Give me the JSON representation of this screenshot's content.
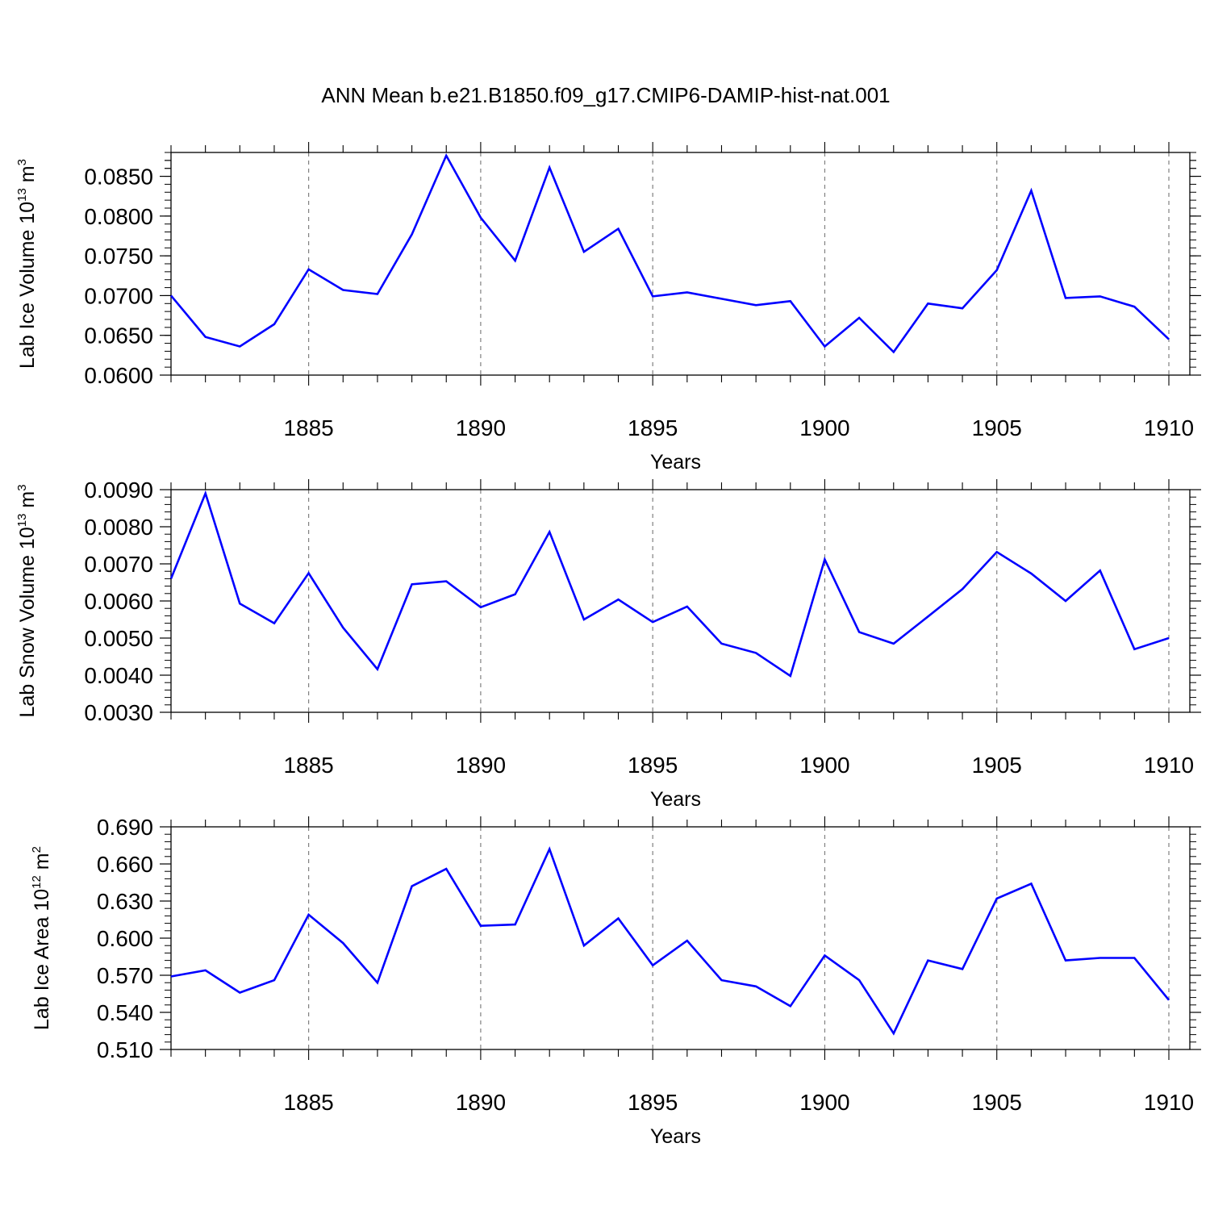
{
  "title": "ANN Mean b.e21.B1850.f09_g17.CMIP6-DAMIP-hist-nat.001",
  "colors": {
    "line": "#0000ff",
    "axes": "#000000",
    "grid": "#808080"
  },
  "chart_data": [
    {
      "type": "line",
      "ylabel": {
        "text": "Lab Ice Volume 10",
        "exp": "13",
        "unit": " m",
        "unit_exp": "3"
      },
      "xlabel": "Years",
      "xlim": [
        1881,
        1910
      ],
      "ylim": [
        0.06,
        0.088
      ],
      "yticks": [
        "0.0600",
        "0.0650",
        "0.0700",
        "0.0750",
        "0.0800",
        "0.0850"
      ],
      "xticks": [
        "1885",
        "1890",
        "1895",
        "1900",
        "1905",
        "1910"
      ],
      "grid": "vertical dashed at major x ticks",
      "series": [
        {
          "x": [
            1881,
            1882,
            1883,
            1884,
            1885,
            1886,
            1887,
            1888,
            1889,
            1890,
            1891,
            1892,
            1893,
            1894,
            1895,
            1896,
            1897,
            1898,
            1899,
            1900,
            1901,
            1902,
            1903,
            1904,
            1905,
            1906,
            1907,
            1908,
            1909,
            1910
          ],
          "values": [
            0.07,
            0.0648,
            0.0636,
            0.0664,
            0.0733,
            0.0707,
            0.0702,
            0.0777,
            0.0876,
            0.0798,
            0.0744,
            0.0861,
            0.0755,
            0.0784,
            0.0699,
            0.0704,
            0.0696,
            0.0688,
            0.0693,
            0.0636,
            0.0672,
            0.0629,
            0.069,
            0.0684,
            0.0732,
            0.0832,
            0.0697,
            0.0699,
            0.0686,
            0.0645
          ]
        }
      ]
    },
    {
      "type": "line",
      "ylabel": {
        "text": "Lab Snow Volume 10",
        "exp": "13",
        "unit": " m",
        "unit_exp": "3"
      },
      "xlabel": "Years",
      "xlim": [
        1881,
        1910
      ],
      "ylim": [
        0.003,
        0.009
      ],
      "yticks": [
        "0.0030",
        "0.0040",
        "0.0050",
        "0.0060",
        "0.0070",
        "0.0080",
        "0.0090"
      ],
      "xticks": [
        "1885",
        "1890",
        "1895",
        "1900",
        "1905",
        "1910"
      ],
      "grid": "vertical dashed at major x ticks",
      "series": [
        {
          "x": [
            1881,
            1882,
            1883,
            1884,
            1885,
            1886,
            1887,
            1888,
            1889,
            1890,
            1891,
            1892,
            1893,
            1894,
            1895,
            1896,
            1897,
            1898,
            1899,
            1900,
            1901,
            1902,
            1903,
            1904,
            1905,
            1906,
            1907,
            1908,
            1909,
            1910
          ],
          "values": [
            0.0066,
            0.0089,
            0.00593,
            0.0054,
            0.00675,
            0.00528,
            0.00416,
            0.00645,
            0.00653,
            0.00583,
            0.00618,
            0.00786,
            0.0055,
            0.00604,
            0.00543,
            0.00585,
            0.00485,
            0.0046,
            0.00398,
            0.00712,
            0.00516,
            0.00485,
            0.00558,
            0.00632,
            0.00732,
            0.00674,
            0.006,
            0.00682,
            0.0047,
            0.005
          ]
        }
      ]
    },
    {
      "type": "line",
      "ylabel": {
        "text": "Lab Ice Area 10",
        "exp": "12",
        "unit": " m",
        "unit_exp": "2"
      },
      "xlabel": "Years",
      "xlim": [
        1881,
        1910
      ],
      "ylim": [
        0.51,
        0.69
      ],
      "yticks": [
        "0.510",
        "0.540",
        "0.570",
        "0.600",
        "0.630",
        "0.660",
        "0.690"
      ],
      "xticks": [
        "1885",
        "1890",
        "1895",
        "1900",
        "1905",
        "1910"
      ],
      "grid": "vertical dashed at major x ticks",
      "series": [
        {
          "x": [
            1881,
            1882,
            1883,
            1884,
            1885,
            1886,
            1887,
            1888,
            1889,
            1890,
            1891,
            1892,
            1893,
            1894,
            1895,
            1896,
            1897,
            1898,
            1899,
            1900,
            1901,
            1902,
            1903,
            1904,
            1905,
            1906,
            1907,
            1908,
            1909,
            1910
          ],
          "values": [
            0.569,
            0.574,
            0.556,
            0.566,
            0.619,
            0.596,
            0.564,
            0.642,
            0.656,
            0.61,
            0.611,
            0.672,
            0.594,
            0.616,
            0.578,
            0.598,
            0.566,
            0.561,
            0.545,
            0.586,
            0.566,
            0.523,
            0.582,
            0.575,
            0.632,
            0.644,
            0.582,
            0.584,
            0.584,
            0.55
          ]
        }
      ]
    }
  ]
}
